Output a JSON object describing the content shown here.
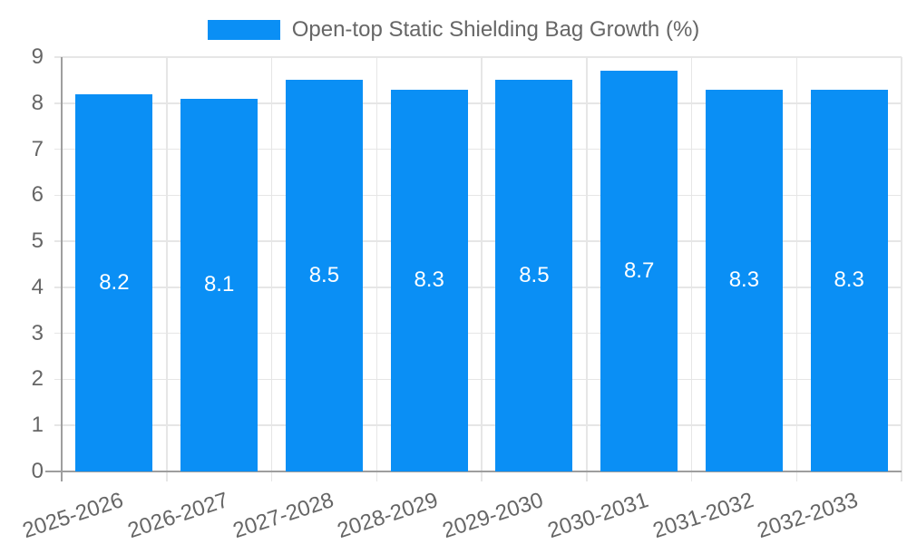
{
  "chart_data": {
    "type": "bar",
    "title": "",
    "legend": {
      "label": "Open-top Static Shielding Bag Growth (%)",
      "position": "top"
    },
    "categories": [
      "2025-2026",
      "2026-2027",
      "2027-2028",
      "2028-2029",
      "2029-2030",
      "2030-2031",
      "2031-2032",
      "2032-2033"
    ],
    "series": [
      {
        "name": "Open-top Static Shielding Bag Growth (%)",
        "values": [
          8.2,
          8.1,
          8.5,
          8.3,
          8.5,
          8.7,
          8.3,
          8.3
        ]
      }
    ],
    "value_labels": [
      "8.2",
      "8.1",
      "8.5",
      "8.3",
      "8.5",
      "8.7",
      "8.3",
      "8.3"
    ],
    "y_ticks": [
      0,
      1,
      2,
      3,
      4,
      5,
      6,
      7,
      8,
      9
    ],
    "ylim": [
      0,
      9
    ],
    "xlabel": "",
    "ylabel": "",
    "grid": true,
    "x_label_rotation_deg": -18,
    "colors": {
      "bar": "#0a8ff5",
      "value_label": "#ffffff",
      "tick_text": "#666666",
      "legend_text": "#666666",
      "gridline": "#e6e6e6",
      "axis": "#9e9e9e",
      "background": "#ffffff"
    }
  }
}
